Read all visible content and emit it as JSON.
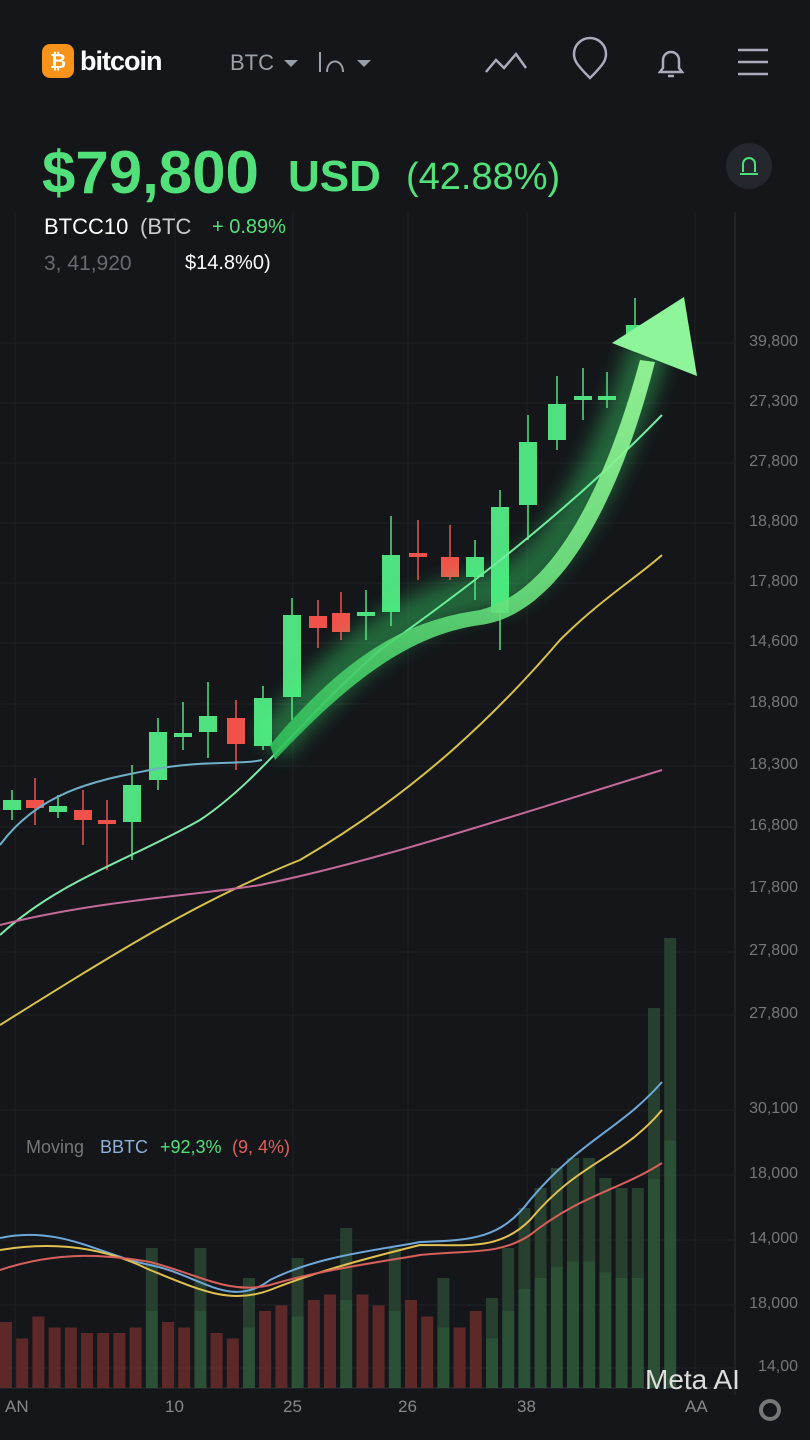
{
  "header": {
    "logo": "bitcoin",
    "pair": "BTC"
  },
  "price": {
    "value": "$79,800",
    "currency": "USD",
    "change": "(42.88%)",
    "ticker": "BTCC10",
    "ticker_sub": "(BTC",
    "ticker_change": "+ 0.89%",
    "volume": "3, 41,920",
    "volume_change": "$14.8%0)"
  },
  "axis": {
    "y_labels": [
      "39,800",
      "27,300",
      "27,800",
      "18,800",
      "17,800",
      "14,600",
      "18,800",
      "18,300",
      "16,800",
      "17,800",
      "27,800",
      "27,800",
      "30,100",
      "18,000",
      "14,000",
      "18,000",
      "14,00"
    ],
    "x_labels": [
      "AN",
      "10",
      "25",
      "26",
      "38",
      "AA"
    ]
  },
  "indicator": {
    "name": "Moving",
    "symbol": "BBTC",
    "change_up": "+92,3%",
    "change_down": "(9, 4%)"
  },
  "watermark": "Meta AI"
}
